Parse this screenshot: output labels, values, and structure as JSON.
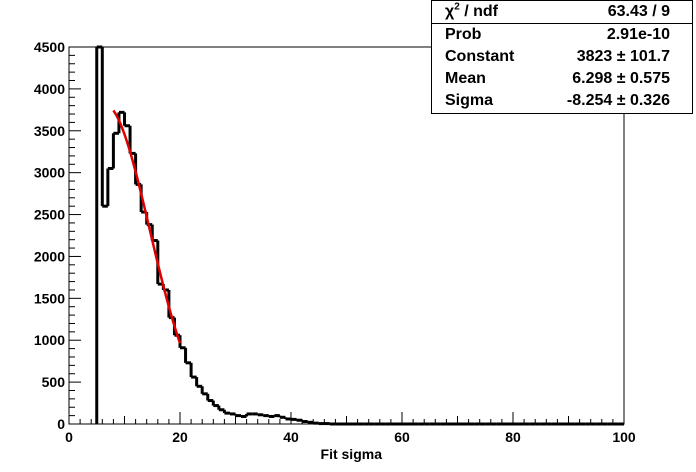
{
  "chart_data": {
    "type": "bar",
    "xlabel": "Fit sigma",
    "ylabel": "",
    "xlim": [
      0,
      100
    ],
    "ylim": [
      0,
      4500
    ],
    "x_ticks": [
      0,
      20,
      40,
      60,
      80,
      100
    ],
    "y_ticks": [
      0,
      500,
      1000,
      1500,
      2000,
      2500,
      3000,
      3500,
      4000,
      4500
    ],
    "bin_width": 1,
    "bins_start": 5,
    "values": [
      4500,
      2600,
      3050,
      3470,
      3720,
      3560,
      3230,
      2860,
      2530,
      2380,
      2190,
      1670,
      1600,
      1270,
      1060,
      910,
      730,
      560,
      450,
      360,
      280,
      220,
      170,
      130,
      120,
      100,
      90,
      120,
      120,
      110,
      100,
      90,
      100,
      80,
      60,
      55,
      45,
      30,
      20,
      10,
      5,
      5,
      0,
      0,
      0,
      0,
      0,
      0,
      0,
      0,
      0,
      0,
      0,
      0,
      0,
      0,
      0,
      0,
      0,
      0,
      0,
      0,
      0,
      0,
      0,
      0,
      0,
      0,
      0,
      0,
      0,
      0,
      0,
      0,
      0,
      0,
      0,
      0,
      0,
      0,
      0,
      0,
      0,
      0,
      0,
      0,
      0,
      0,
      0,
      0,
      0,
      0,
      0,
      0,
      0
    ],
    "fit": {
      "function": "gaus",
      "color": "#e00000",
      "x_range": [
        8,
        20
      ],
      "constant": 3823,
      "mean": 6.298,
      "sigma": -8.254
    },
    "stats": [
      {
        "label": "χ² / ndf",
        "value": "63.43 / 9"
      },
      {
        "label": "Prob",
        "value": "2.91e-10"
      },
      {
        "label": "Constant",
        "value": "3823 ± 101.7"
      },
      {
        "label": "Mean",
        "value": "6.298 ± 0.575"
      },
      {
        "label": "Sigma",
        "value": "-8.254 ± 0.326"
      }
    ],
    "grid": false,
    "legend_position": "top-right"
  }
}
